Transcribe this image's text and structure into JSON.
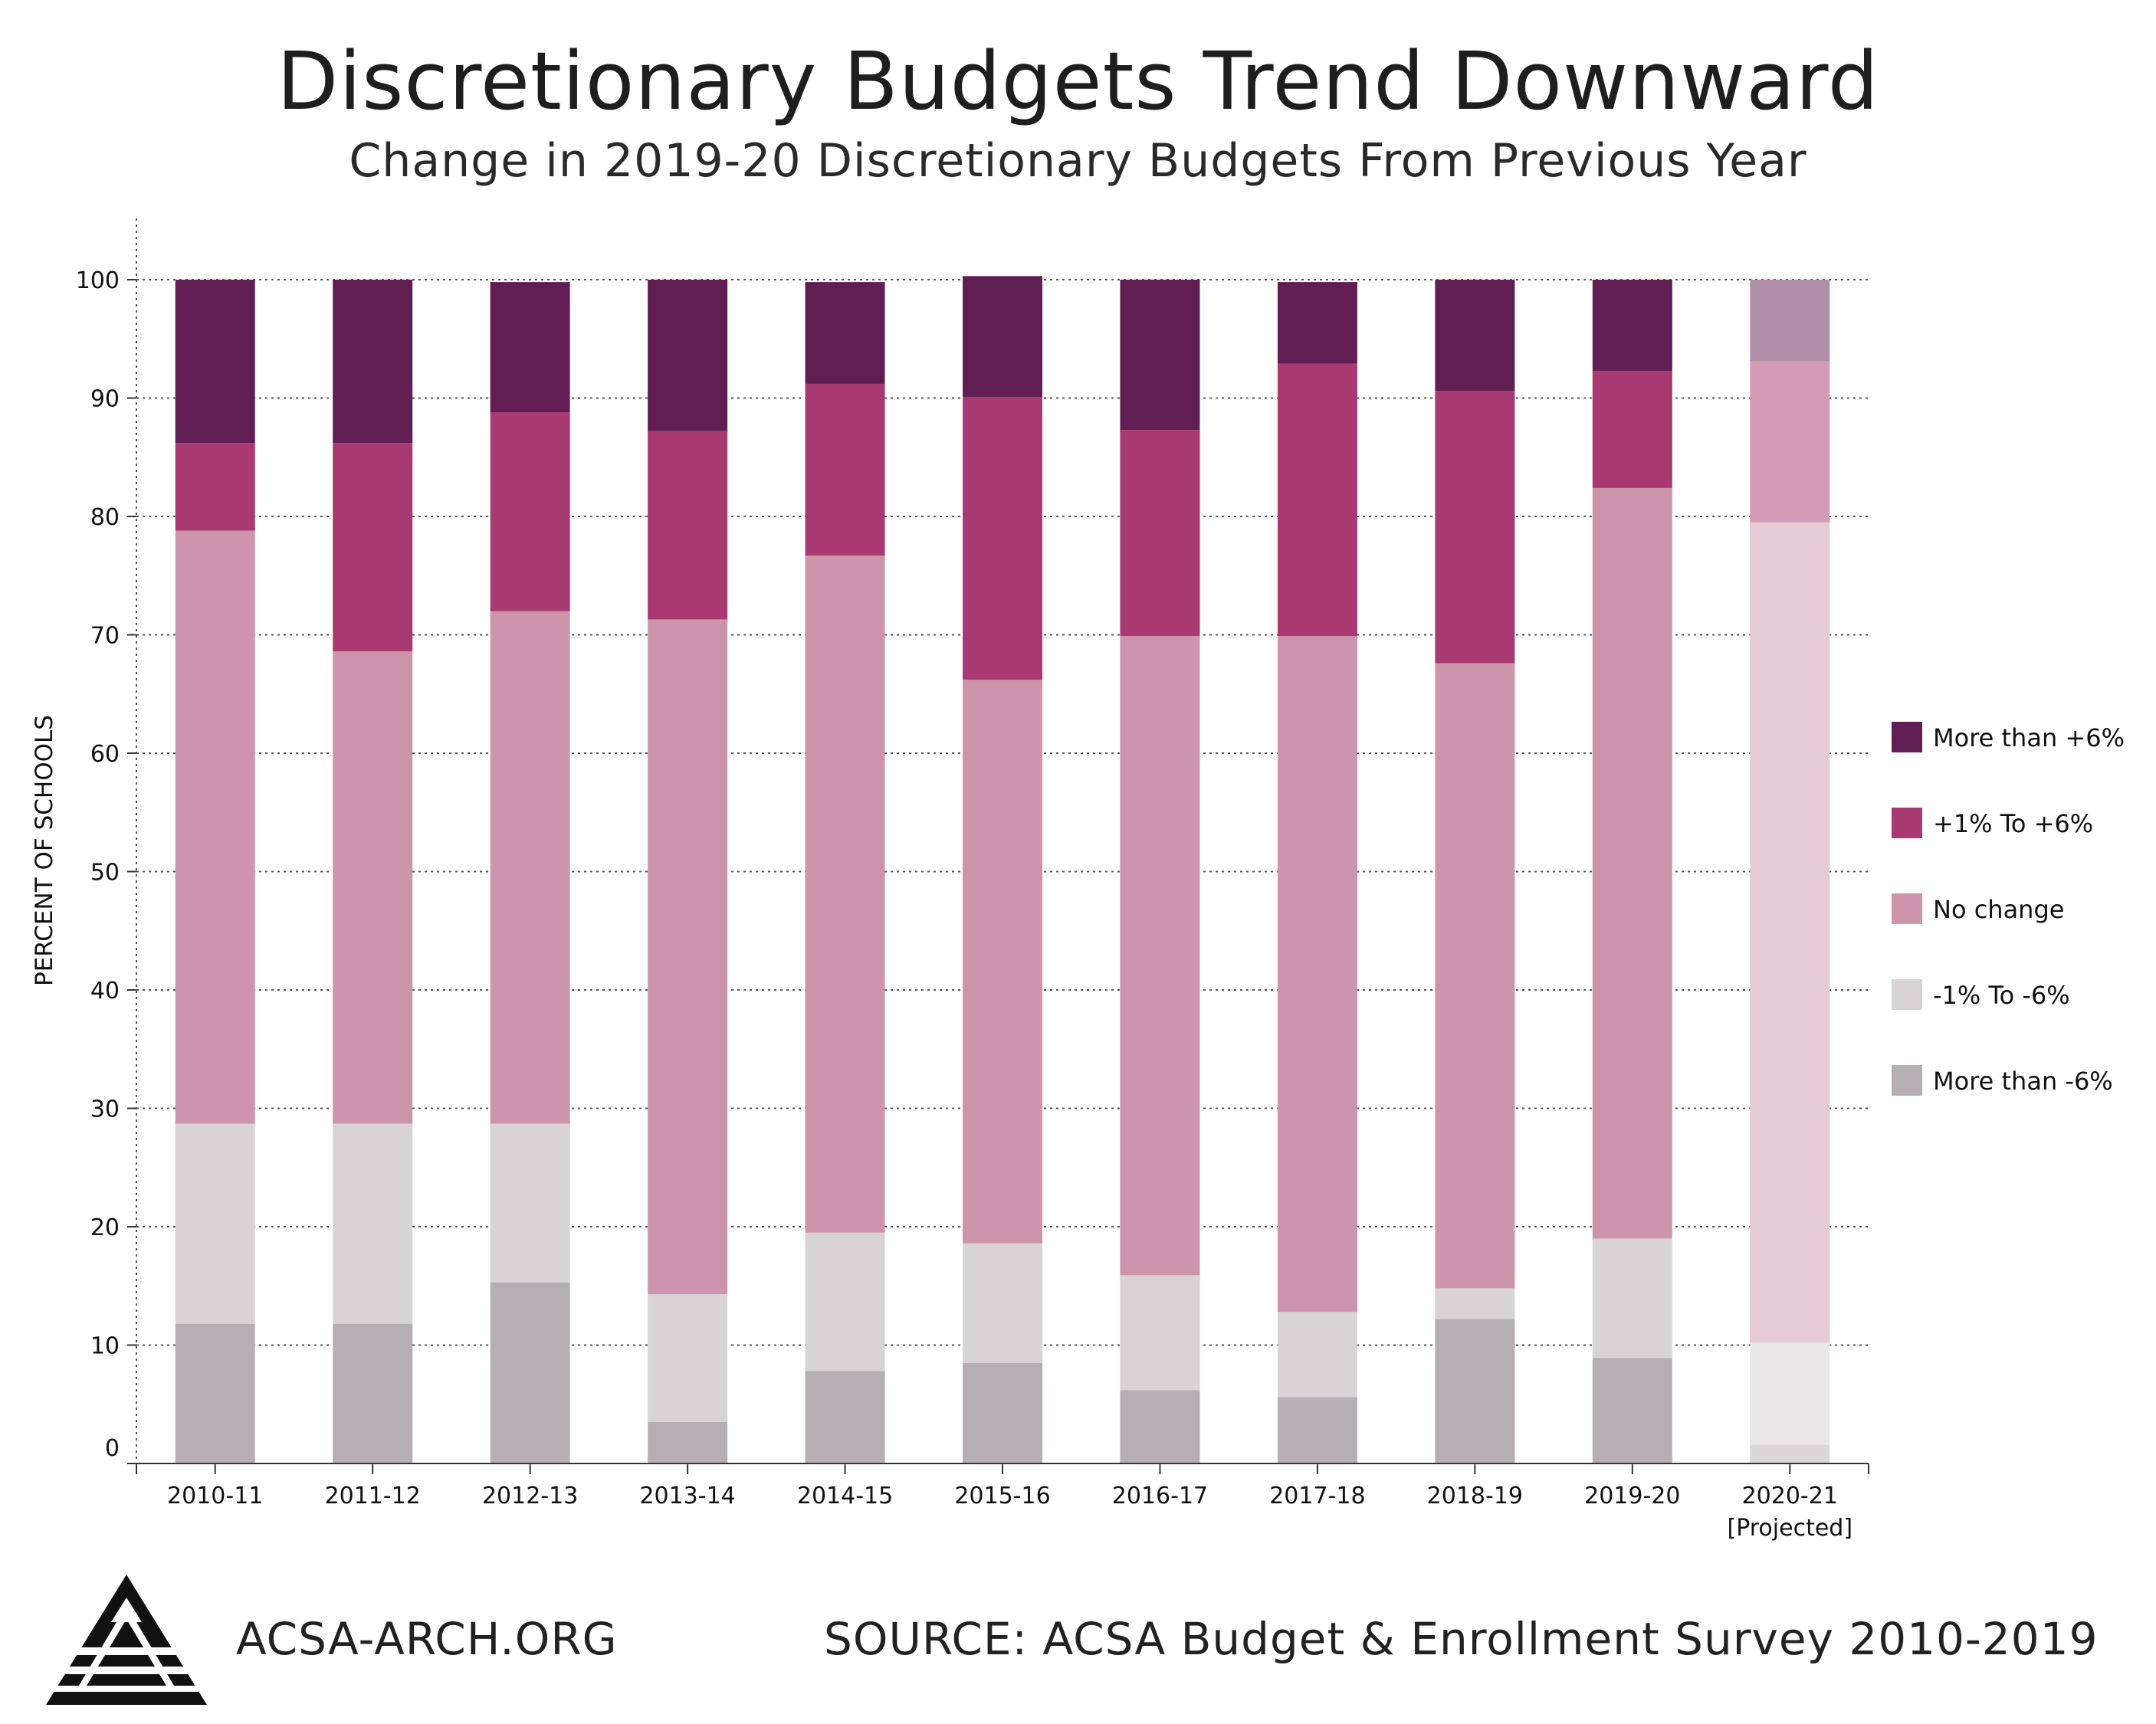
{
  "title": "Discretionary Budgets Trend Downward",
  "subtitle": "Change in 2019-20 Discretionary Budgets From Previous Year",
  "footer": {
    "site": "ACSA-ARCH.ORG",
    "source": "SOURCE: ACSA Budget & Enrollment Survey 2010-2019"
  },
  "logo": {
    "icon": "acsa-triangle-logo-icon"
  },
  "chart_data": {
    "type": "bar",
    "stacked": true,
    "ylabel": "PERCENT OF SCHOOLS",
    "xlabel": "",
    "ylim": [
      0,
      100
    ],
    "yticks": [
      0,
      10,
      20,
      30,
      40,
      50,
      60,
      70,
      80,
      90,
      100
    ],
    "grid": "horizontal-dotted",
    "legend_position": "right",
    "categories": [
      "2010-11",
      "2011-12",
      "2012-13",
      "2013-14",
      "2014-15",
      "2015-16",
      "2016-17",
      "2017-18",
      "2018-19",
      "2019-20",
      "2020-21"
    ],
    "category_notes": [
      "",
      "",
      "",
      "",
      "",
      "",
      "",
      "",
      "",
      "",
      "[Projected]"
    ],
    "projected_index": 10,
    "series": [
      {
        "name": "More than -6%",
        "color": "#b5aeb2",
        "projected_color": "#dbd7d9",
        "values": [
          11.8,
          11.8,
          15.3,
          3.5,
          7.8,
          8.5,
          6.2,
          5.6,
          12.2,
          8.9,
          1.6
        ]
      },
      {
        "name": "-1% To -6%",
        "color": "#d8d3d4",
        "projected_color": "#e9e6e8",
        "values": [
          16.9,
          16.9,
          13.4,
          10.8,
          11.7,
          10.1,
          9.7,
          7.2,
          2.6,
          10.1,
          8.6
        ]
      },
      {
        "name": "No change",
        "color": "#cc95ab",
        "projected_color": "#e6cad5",
        "values": [
          50.1,
          39.9,
          43.3,
          57.0,
          57.2,
          47.6,
          54.0,
          57.1,
          52.8,
          63.4,
          69.3
        ]
      },
      {
        "name": "+1% To +6%",
        "color": "#a83a71",
        "projected_color": "#d49bb6",
        "values": [
          7.4,
          17.6,
          16.8,
          15.9,
          14.5,
          23.9,
          17.4,
          23.0,
          23.0,
          9.9,
          13.6
        ]
      },
      {
        "name": "More than +6%",
        "color": "#611e53",
        "projected_color": "#b08ea7",
        "values": [
          13.8,
          13.8,
          11.0,
          12.8,
          8.6,
          10.2,
          12.7,
          6.9,
          9.4,
          7.7,
          6.9
        ]
      }
    ],
    "legend_order": [
      "More than +6%",
      "+1% To +6%",
      "No change",
      "-1% To -6%",
      "More than -6%"
    ]
  }
}
